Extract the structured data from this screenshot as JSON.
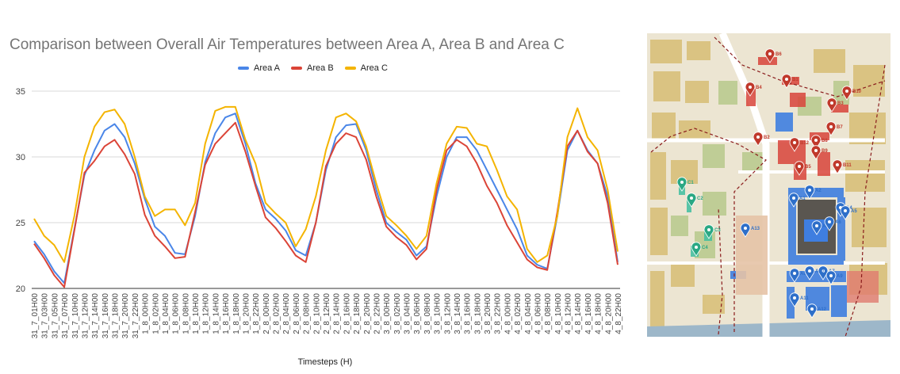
{
  "chart_data": {
    "type": "line",
    "title": "Comparison between Overall Air Temperatures between Area A, Area B and Area C",
    "xlabel": "Timesteps (H)",
    "ylabel": "",
    "ylim": [
      20,
      35
    ],
    "yticks": [
      20,
      25,
      30,
      35
    ],
    "grid": true,
    "legend_position": "top",
    "x": [
      "31_7_01H00",
      "31_7_03H00",
      "31_7_05H00",
      "31_7_07H00",
      "31_7_10H00",
      "31_7_12H00",
      "31_7_14H00",
      "31_7_16H00",
      "31_7_18H00",
      "31_7_20H00",
      "31_7_22H00",
      "1_8_00H00",
      "1_8_02H00",
      "1_8_04H00",
      "1_8_06H00",
      "1_8_08H00",
      "1_8_10H00",
      "1_8_12H00",
      "1_8_14H00",
      "1_8_16H00",
      "1_8_18H00",
      "1_8_20H00",
      "1_8_22H00",
      "2_8_00H00",
      "2_8_02H00",
      "2_8_04H00",
      "2_8_06H00",
      "2_8_08H00",
      "2_8_10H00",
      "2_8_12H00",
      "2_8_14H00",
      "2_8_16H00",
      "2_8_18H00",
      "2_8_20H00",
      "2_8_22H00",
      "3_8_00H00",
      "3_8_02H00",
      "3_8_04H00",
      "3_8_06H00",
      "3_8_08H00",
      "3_8_10H00",
      "3_8_12H00",
      "3_8_14H00",
      "3_8_16H00",
      "3_8_18H00",
      "3_8_20H00",
      "3_8_22H00",
      "4_8_00H00",
      "4_8_02H00",
      "4_8_04H00",
      "4_8_06H00",
      "4_8_08H00",
      "4_8_10H00",
      "4_8_12H00",
      "4_8_14H00",
      "4_8_16H00",
      "4_8_18H00",
      "4_8_20H00",
      "4_8_22H00"
    ],
    "series": [
      {
        "name": "Area A",
        "color": "#4a86e8",
        "values": [
          23.6,
          22.6,
          21.3,
          20.4,
          24.5,
          28.6,
          30.5,
          32.0,
          32.5,
          31.5,
          29.5,
          26.8,
          24.7,
          24.0,
          22.7,
          22.6,
          25.5,
          29.6,
          31.8,
          33.0,
          33.3,
          31.0,
          28.0,
          26.0,
          25.3,
          24.4,
          22.9,
          22.5,
          25.0,
          29.0,
          31.5,
          32.4,
          32.5,
          30.5,
          27.5,
          25.0,
          24.3,
          23.7,
          22.5,
          23.2,
          27.0,
          30.0,
          31.5,
          31.5,
          30.5,
          29.0,
          27.5,
          26.0,
          24.5,
          22.5,
          21.8,
          21.5,
          25.5,
          30.5,
          32.0,
          30.5,
          29.5,
          27.0,
          22.0
        ]
      },
      {
        "name": "Area B",
        "color": "#db4437",
        "values": [
          23.4,
          22.3,
          21.0,
          20.1,
          24.4,
          28.8,
          29.7,
          30.8,
          31.3,
          30.2,
          28.7,
          25.6,
          24.0,
          23.2,
          22.3,
          22.4,
          25.8,
          29.4,
          31.0,
          31.8,
          32.6,
          30.4,
          27.8,
          25.4,
          24.6,
          23.6,
          22.5,
          22.0,
          25.0,
          29.3,
          31.0,
          31.8,
          31.5,
          29.8,
          27.0,
          24.7,
          23.9,
          23.3,
          22.2,
          23.0,
          27.5,
          30.5,
          31.3,
          30.8,
          29.5,
          27.8,
          26.5,
          24.8,
          23.5,
          22.2,
          21.6,
          21.4,
          25.8,
          30.8,
          32.0,
          30.4,
          29.5,
          26.5,
          21.8
        ]
      },
      {
        "name": "Area C",
        "color": "#f4b400",
        "values": [
          25.3,
          24.0,
          23.3,
          22.0,
          25.5,
          30.0,
          32.3,
          33.4,
          33.6,
          32.5,
          30.0,
          27.0,
          25.5,
          26.0,
          26.0,
          24.8,
          26.5,
          31.0,
          33.5,
          33.8,
          33.8,
          31.3,
          29.5,
          26.5,
          25.7,
          25.0,
          23.2,
          24.5,
          27.0,
          30.5,
          33.0,
          33.3,
          32.7,
          30.8,
          28.0,
          25.5,
          24.8,
          24.0,
          23.0,
          24.0,
          28.0,
          31.0,
          32.3,
          32.2,
          31.0,
          30.8,
          29.0,
          27.0,
          26.0,
          23.0,
          22.0,
          22.5,
          25.5,
          31.5,
          33.7,
          31.5,
          30.5,
          27.5,
          22.8
        ]
      }
    ]
  },
  "map": {
    "image_label": "Site map of Area A, Area B and Area C",
    "markers_b": [
      "B6",
      "B1",
      "B4",
      "B10",
      "B3",
      "B2",
      "B7",
      "B12",
      "B11",
      "B8",
      "B5",
      "B9"
    ],
    "markers_a": [
      "A1",
      "A2",
      "A3",
      "A4",
      "A5",
      "A6",
      "A7",
      "A8",
      "A9",
      "A10",
      "A11",
      "A12",
      "A13"
    ],
    "markers_c": [
      "C1",
      "C2",
      "C3",
      "C4"
    ],
    "colors": {
      "area_a": "#3f7ee0",
      "area_b": "#d9453b",
      "area_c": "#3fbfa0",
      "marker_b": "#c0392b",
      "marker_a": "#2e6fc9",
      "marker_c": "#2aa884"
    }
  }
}
